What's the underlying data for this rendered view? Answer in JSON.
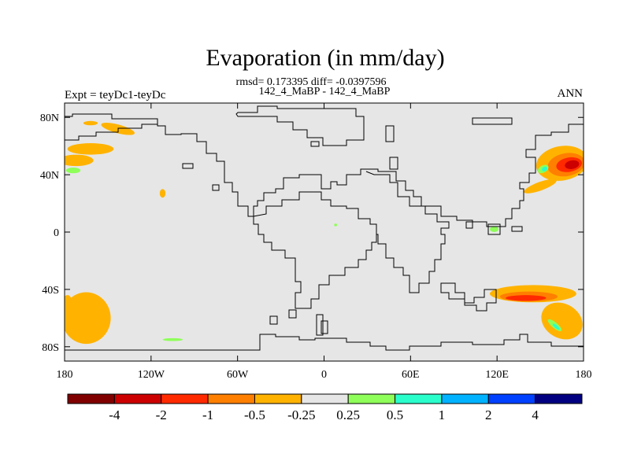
{
  "title": "Evaporation (in mm/day)",
  "stats": "rmsd= 0.173395 diff= -0.0397596",
  "subtitle": "142_4_MaBP - 142_4_MaBP",
  "left_label": "Expt = teyDc1-teyDc",
  "right_label": "ANN",
  "map": {
    "lon_range": [
      -180,
      180
    ],
    "lat_range": [
      -90,
      90
    ],
    "background_color": "#e6e6e6",
    "x_ticks": [
      {
        "lon": -180,
        "label": "180"
      },
      {
        "lon": -120,
        "label": "120W"
      },
      {
        "lon": -60,
        "label": "60W"
      },
      {
        "lon": 0,
        "label": "0"
      },
      {
        "lon": 60,
        "label": "60E"
      },
      {
        "lon": 120,
        "label": "120E"
      },
      {
        "lon": 180,
        "label": "180"
      }
    ],
    "y_ticks": [
      {
        "lat": 80,
        "label": "80N"
      },
      {
        "lat": 40,
        "label": "40N"
      },
      {
        "lat": 0,
        "label": "0"
      },
      {
        "lat": -40,
        "label": "40S"
      },
      {
        "lat": -80,
        "label": "80S"
      }
    ]
  },
  "colorbar": {
    "boundaries": [
      "-4",
      "-2",
      "-1",
      "-0.5",
      "-0.25",
      "0.25",
      "0.5",
      "1",
      "2",
      "4"
    ],
    "colors": [
      "#800000",
      "#cc0000",
      "#ff2a00",
      "#ff7f00",
      "#ffb300",
      "#e6e6e6",
      "#8fff5a",
      "#2affcc",
      "#00b2ff",
      "#0040ff",
      "#000080"
    ]
  },
  "fields": [
    {
      "class": 4,
      "lon": 165,
      "lat": 48,
      "rx": 18,
      "ry": 12,
      "rot": -10
    },
    {
      "class": 3,
      "lon": 168,
      "lat": 47,
      "rx": 13,
      "ry": 8,
      "rot": -10
    },
    {
      "class": 2,
      "lon": 170,
      "lat": 47,
      "rx": 9,
      "ry": 5,
      "rot": -10
    },
    {
      "class": 1,
      "lon": 172,
      "lat": 47,
      "rx": 5,
      "ry": 3,
      "rot": -10
    },
    {
      "class": 4,
      "lon": 150,
      "lat": 32,
      "rx": 12,
      "ry": 3,
      "rot": -20
    },
    {
      "class": 6,
      "lon": 152,
      "lat": 44,
      "rx": 4,
      "ry": 2.5,
      "rot": -30
    },
    {
      "class": 7,
      "lon": 153,
      "lat": 44,
      "rx": 2,
      "ry": 1.5,
      "rot": -30
    },
    {
      "class": 4,
      "lon": -162,
      "lat": 58,
      "rx": 16,
      "ry": 4,
      "rot": 0
    },
    {
      "class": 4,
      "lon": -172,
      "lat": 50,
      "rx": 12,
      "ry": 4,
      "rot": 0
    },
    {
      "class": 6,
      "lon": -174,
      "lat": 43,
      "rx": 5,
      "ry": 2,
      "rot": 0
    },
    {
      "class": 4,
      "lon": -162,
      "lat": 76,
      "rx": 5,
      "ry": 1.5,
      "rot": 0
    },
    {
      "class": 4,
      "lon": -143,
      "lat": 72,
      "rx": 12,
      "ry": 3,
      "rot": 15
    },
    {
      "class": 4,
      "lon": -112,
      "lat": 27,
      "rx": 2,
      "ry": 3,
      "rot": 0
    },
    {
      "class": 6,
      "lon": 8,
      "lat": 5,
      "rx": 1,
      "ry": 1,
      "rot": 0
    },
    {
      "class": 6,
      "lon": 118,
      "lat": 2,
      "rx": 3,
      "ry": 2,
      "rot": 0
    },
    {
      "class": 4,
      "lon": 145,
      "lat": -43,
      "rx": 30,
      "ry": 6,
      "rot": 0
    },
    {
      "class": 3,
      "lon": 142,
      "lat": -45,
      "rx": 20,
      "ry": 3.5,
      "rot": 0
    },
    {
      "class": 2,
      "lon": 140,
      "lat": -46,
      "rx": 14,
      "ry": 2,
      "rot": 0
    },
    {
      "class": 4,
      "lon": 165,
      "lat": -62,
      "rx": 15,
      "ry": 12,
      "rot": 30
    },
    {
      "class": 6,
      "lon": 160,
      "lat": -65,
      "rx": 6,
      "ry": 2,
      "rot": 40
    },
    {
      "class": 7,
      "lon": 161,
      "lat": -66,
      "rx": 3,
      "ry": 1,
      "rot": 40
    },
    {
      "class": 4,
      "lon": -165,
      "lat": -60,
      "rx": 17,
      "ry": 18,
      "rot": 0
    },
    {
      "class": 4,
      "lon": -178,
      "lat": -48,
      "rx": 3,
      "ry": 4,
      "rot": 0
    },
    {
      "class": 6,
      "lon": -105,
      "lat": -75,
      "rx": 7,
      "ry": 1,
      "rot": 0
    }
  ]
}
